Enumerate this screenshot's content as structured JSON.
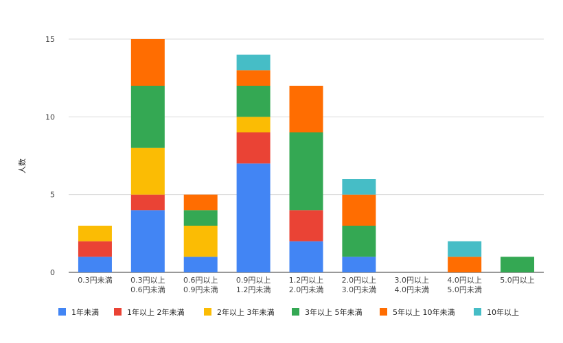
{
  "chart_data": {
    "type": "bar",
    "stacked": true,
    "ylabel": "人数",
    "ylim": [
      0,
      15
    ],
    "yticks": [
      0,
      5,
      10,
      15
    ],
    "grid": true,
    "legend_position": "bottom",
    "categories": [
      [
        "0.3円未満"
      ],
      [
        "0.3円以上",
        "0.6円未満"
      ],
      [
        "0.6円以上",
        "0.9円未満"
      ],
      [
        "0.9円以上",
        "1.2円未満"
      ],
      [
        "1.2円以上",
        "2.0円未満"
      ],
      [
        "2.0円以上",
        "3.0円未満"
      ],
      [
        "3.0円以上",
        "4.0円未満"
      ],
      [
        "4.0円以上",
        "5.0円未満"
      ],
      [
        "5.0円以上"
      ]
    ],
    "series": [
      {
        "name": "1年未満",
        "color": "#4285f4",
        "values": [
          1,
          4,
          1,
          7,
          2,
          1,
          0,
          0,
          0
        ]
      },
      {
        "name": "1年以上 2年未満",
        "color": "#ea4335",
        "values": [
          1,
          1,
          0,
          2,
          2,
          0,
          0,
          0,
          0
        ]
      },
      {
        "name": "2年以上 3年未満",
        "color": "#fbbc04",
        "values": [
          1,
          3,
          2,
          1,
          0,
          0,
          0,
          0,
          0
        ]
      },
      {
        "name": "3年以上 5年未満",
        "color": "#34a853",
        "values": [
          0,
          4,
          1,
          2,
          5,
          2,
          0,
          0,
          1
        ]
      },
      {
        "name": "5年以上 10年未満",
        "color": "#ff6d01",
        "values": [
          0,
          3,
          1,
          1,
          3,
          2,
          0,
          1,
          0
        ]
      },
      {
        "name": "10年以上",
        "color": "#46bdc6",
        "values": [
          0,
          0,
          0,
          1,
          0,
          1,
          0,
          1,
          0
        ]
      }
    ]
  }
}
